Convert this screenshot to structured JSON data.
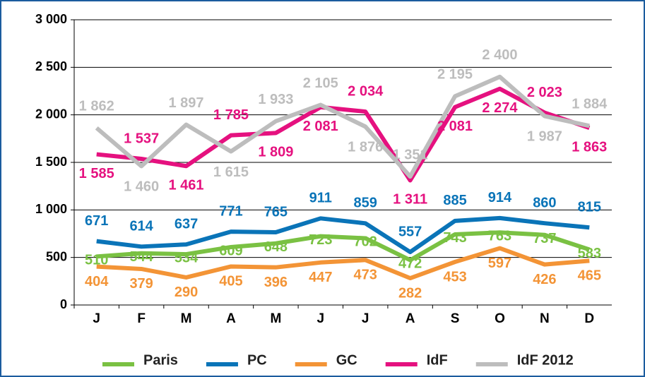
{
  "chart_data": {
    "type": "line",
    "categories": [
      "J",
      "F",
      "M",
      "A",
      "M",
      "J",
      "J",
      "A",
      "S",
      "O",
      "N",
      "D"
    ],
    "series": [
      {
        "name": "Paris",
        "color": "#7ac143",
        "values": [
          510,
          544,
          534,
          609,
          648,
          723,
          702,
          472,
          743,
          763,
          737,
          583
        ]
      },
      {
        "name": "PC",
        "color": "#0a74b8",
        "values": [
          671,
          614,
          637,
          771,
          765,
          911,
          859,
          557,
          885,
          914,
          860,
          815
        ]
      },
      {
        "name": "GC",
        "color": "#f39436",
        "values": [
          404,
          379,
          290,
          405,
          396,
          447,
          473,
          282,
          453,
          597,
          426,
          465
        ]
      },
      {
        "name": "IdF",
        "color": "#e5117f",
        "values": [
          1585,
          1537,
          1461,
          1785,
          1809,
          2081,
          2034,
          1311,
          2081,
          2274,
          2023,
          1863
        ],
        "value_labels": [
          "1 585",
          "1 537",
          "1 461",
          "1 785",
          "1 809",
          "2 081",
          "2 034",
          "1 311",
          "2 081",
          "2 274",
          "2 023",
          "1 863"
        ]
      },
      {
        "name": "IdF 2012",
        "color": "#bdbdbd",
        "values": [
          1862,
          1460,
          1897,
          1615,
          1933,
          2105,
          1876,
          1351,
          2195,
          2400,
          1987,
          1884
        ],
        "value_labels": [
          "1 862",
          "1 460",
          "1 897",
          "1 615",
          "1 933",
          "2 105",
          "1 876",
          "1 351",
          "2 195",
          "2 400",
          "1 987",
          "1 884"
        ]
      }
    ],
    "ylim": [
      0,
      3000
    ],
    "yticks": [
      0,
      500,
      {
        "value": 1000,
        "label": "1 000"
      },
      {
        "value": 1500,
        "label": "1 500"
      },
      {
        "value": 2000,
        "label": "2 000"
      },
      {
        "value": 2500,
        "label": "2 500"
      },
      {
        "value": 3000,
        "label": "3 000"
      }
    ],
    "grid": true,
    "legend": "bottom"
  }
}
